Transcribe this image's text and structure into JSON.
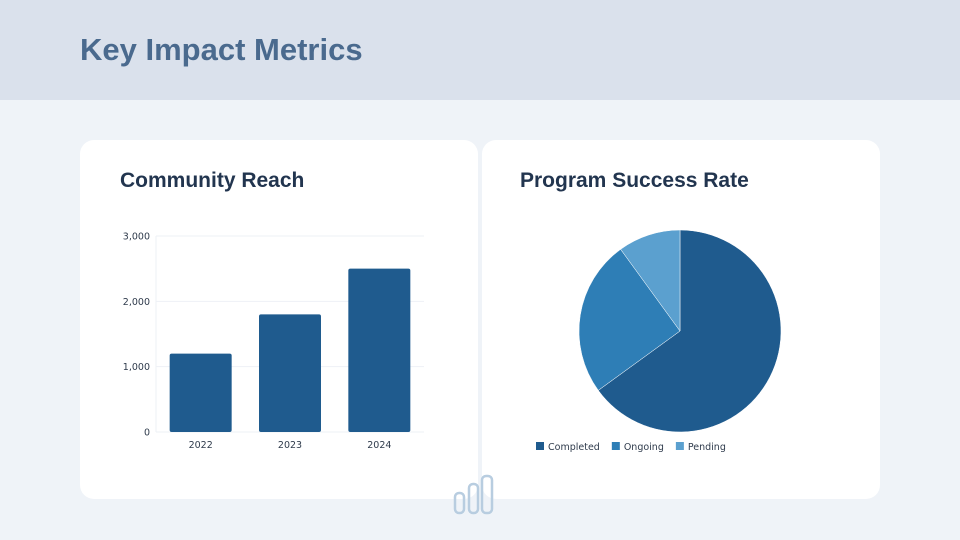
{
  "header": {
    "title": "Key Impact Metrics"
  },
  "chart_data": [
    {
      "type": "bar",
      "title": "Community Reach",
      "categories": [
        "2022",
        "2023",
        "2024"
      ],
      "values": [
        1200,
        1800,
        2500
      ],
      "ylim": [
        0,
        3000
      ],
      "yticks": [
        0,
        1000,
        2000,
        3000
      ],
      "ytick_labels": [
        "0",
        "1,000",
        "2,000",
        "3,000"
      ],
      "grid": true,
      "color": "#1f5b8e"
    },
    {
      "type": "pie",
      "title": "Program Success Rate",
      "labels": [
        "Completed",
        "Ongoing",
        "Pending"
      ],
      "values": [
        65,
        25,
        10
      ],
      "colors": [
        "#1f5b8e",
        "#2e7eb6",
        "#5ba0cf"
      ],
      "legend": "bottom"
    }
  ],
  "decor": {
    "icon": "bar-chart-icon",
    "color": "#b8cde0"
  }
}
